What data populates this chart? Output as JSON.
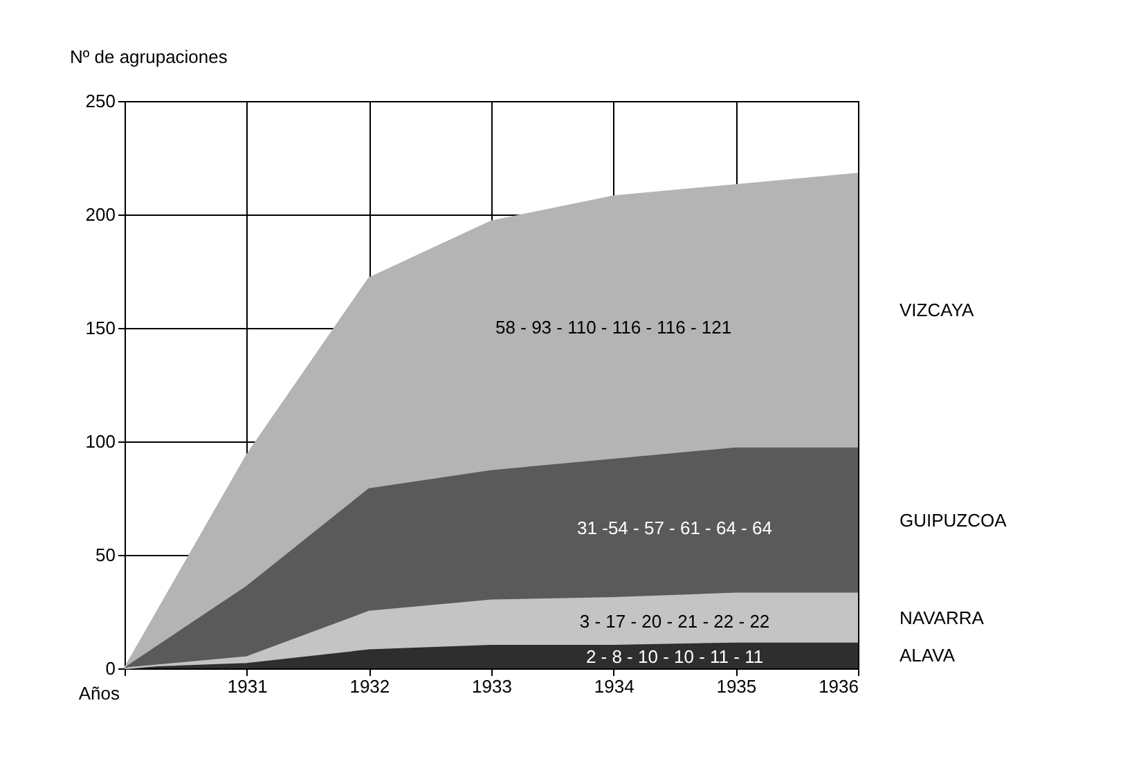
{
  "chart_data": {
    "type": "area",
    "stacked": true,
    "ylabel": "Nº de agrupaciones",
    "xlabel": "Años",
    "x": [
      1930,
      1931,
      1932,
      1933,
      1934,
      1935,
      1936
    ],
    "xlim": [
      1930,
      1936
    ],
    "xticks": [
      {
        "value": 1930,
        "label": null
      },
      1931,
      1932,
      1933,
      1934,
      1935,
      1936
    ],
    "ylim": [
      0,
      250
    ],
    "yticks": [
      0,
      50,
      100,
      150,
      200,
      250
    ],
    "grid": true,
    "legend": false,
    "series": [
      {
        "name": "ALAVA",
        "color": "#2e2e2e",
        "values": [
          0,
          2,
          8,
          10,
          10,
          11,
          11
        ]
      },
      {
        "name": "NAVARRA",
        "color": "#c4c4c4",
        "values": [
          0,
          3,
          17,
          20,
          21,
          22,
          22
        ]
      },
      {
        "name": "GUIPUZCOA",
        "color": "#5a5a5a",
        "values": [
          0,
          31,
          54,
          57,
          61,
          64,
          64
        ]
      },
      {
        "name": "VIZCAYA",
        "color": "#b4b4b4",
        "values": [
          0,
          58,
          93,
          110,
          116,
          116,
          121
        ]
      }
    ],
    "annotations": [
      "58 - 93 - 110 - 116 - 116 - 121",
      "31 -54 - 57 - 61 - 64 - 64",
      "3 - 17 - 20 - 21 - 22 - 22",
      "2 - 8 - 10 - 10 - 11 - 11"
    ]
  }
}
